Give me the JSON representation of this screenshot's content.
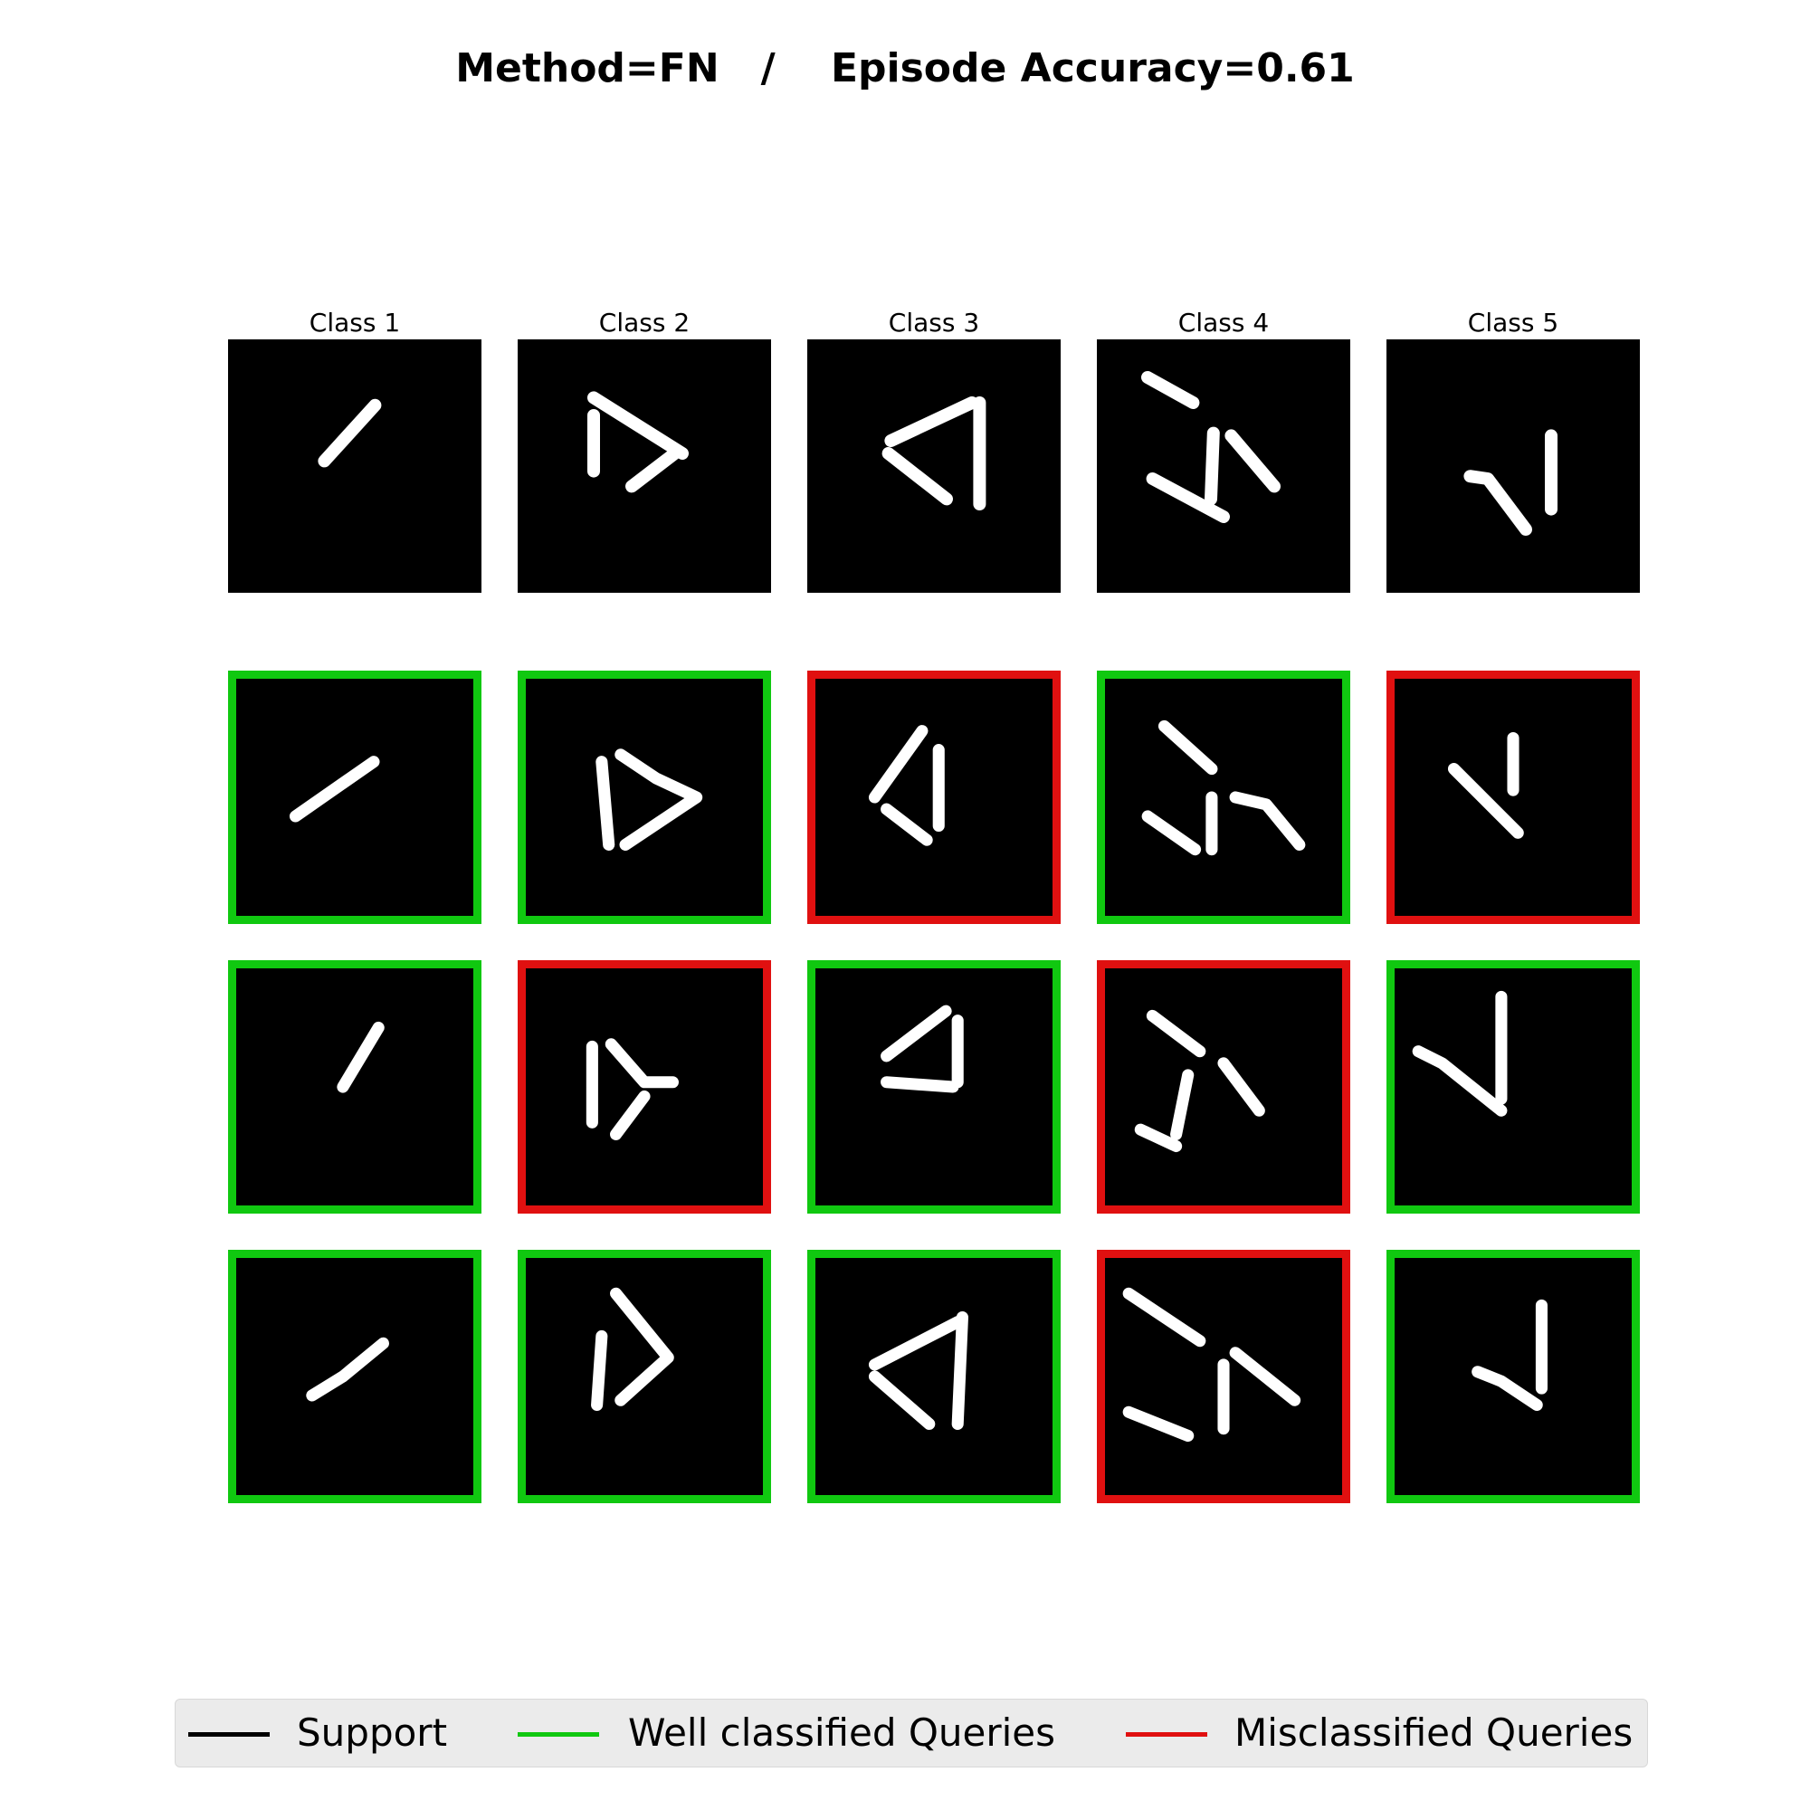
{
  "title": "Method=FN   /    Episode Accuracy=0.61",
  "classes": [
    {
      "label": "Class 1"
    },
    {
      "label": "Class 2"
    },
    {
      "label": "Class 3"
    },
    {
      "label": "Class 4"
    },
    {
      "label": "Class 5"
    }
  ],
  "rows": [
    {
      "role": "support",
      "status": [
        "support",
        "support",
        "support",
        "support",
        "support"
      ]
    },
    {
      "role": "query",
      "status": [
        "correct",
        "correct",
        "wrong",
        "correct",
        "wrong"
      ]
    },
    {
      "role": "query",
      "status": [
        "correct",
        "wrong",
        "correct",
        "wrong",
        "correct"
      ]
    },
    {
      "role": "query",
      "status": [
        "correct",
        "correct",
        "correct",
        "wrong",
        "correct"
      ]
    }
  ],
  "legend": {
    "support": {
      "label": "Support",
      "color": "#000000"
    },
    "well": {
      "label": "Well classified Queries",
      "color": "#10c810"
    },
    "mis": {
      "label": "Misclassified Queries",
      "color": "#e01010"
    }
  }
}
